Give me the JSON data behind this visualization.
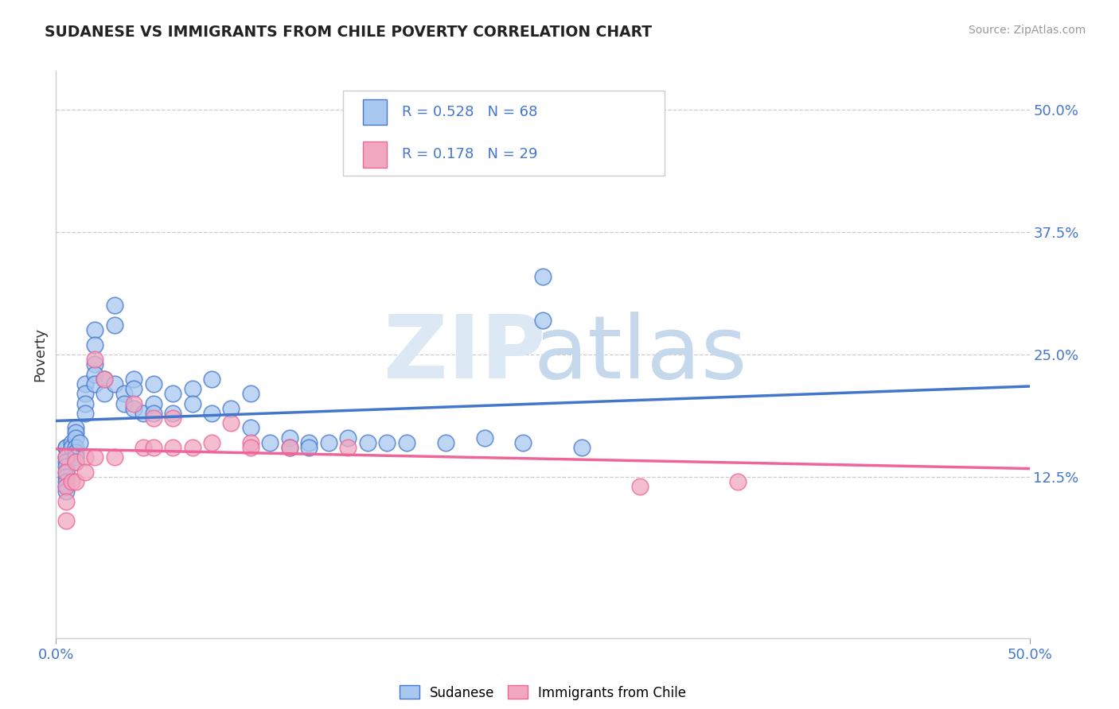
{
  "title": "SUDANESE VS IMMIGRANTS FROM CHILE POVERTY CORRELATION CHART",
  "source": "Source: ZipAtlas.com",
  "ylabel": "Poverty",
  "y_tick_values": [
    0.125,
    0.25,
    0.375,
    0.5
  ],
  "y_tick_labels": [
    "12.5%",
    "25.0%",
    "37.5%",
    "50.0%"
  ],
  "xlim": [
    0.0,
    0.5
  ],
  "ylim": [
    -0.04,
    0.54
  ],
  "R_sudanese": 0.528,
  "N_sudanese": 68,
  "R_chile": 0.178,
  "N_chile": 29,
  "color_sudanese": "#A8C8F0",
  "color_chile": "#F0A8C0",
  "line_color_sudanese": "#4477CC",
  "line_color_chile": "#EE6699",
  "tick_color": "#4477CC",
  "legend_label_sudanese": "Sudanese",
  "legend_label_chile": "Immigrants from Chile",
  "sudanese_x": [
    0.005,
    0.005,
    0.005,
    0.005,
    0.005,
    0.005,
    0.005,
    0.005,
    0.005,
    0.005,
    0.008,
    0.008,
    0.01,
    0.01,
    0.01,
    0.01,
    0.01,
    0.01,
    0.01,
    0.012,
    0.015,
    0.015,
    0.015,
    0.015,
    0.02,
    0.02,
    0.02,
    0.02,
    0.02,
    0.025,
    0.025,
    0.03,
    0.03,
    0.03,
    0.035,
    0.035,
    0.04,
    0.04,
    0.04,
    0.045,
    0.05,
    0.05,
    0.05,
    0.06,
    0.06,
    0.07,
    0.07,
    0.08,
    0.08,
    0.09,
    0.1,
    0.1,
    0.11,
    0.12,
    0.12,
    0.13,
    0.13,
    0.14,
    0.15,
    0.16,
    0.17,
    0.18,
    0.2,
    0.22,
    0.24,
    0.25,
    0.25,
    0.27
  ],
  "sudanese_y": [
    0.155,
    0.155,
    0.145,
    0.14,
    0.135,
    0.13,
    0.125,
    0.12,
    0.115,
    0.11,
    0.16,
    0.155,
    0.175,
    0.17,
    0.165,
    0.155,
    0.15,
    0.145,
    0.14,
    0.16,
    0.22,
    0.21,
    0.2,
    0.19,
    0.275,
    0.26,
    0.24,
    0.23,
    0.22,
    0.225,
    0.21,
    0.3,
    0.28,
    0.22,
    0.21,
    0.2,
    0.225,
    0.215,
    0.195,
    0.19,
    0.22,
    0.2,
    0.19,
    0.21,
    0.19,
    0.215,
    0.2,
    0.225,
    0.19,
    0.195,
    0.21,
    0.175,
    0.16,
    0.165,
    0.155,
    0.16,
    0.155,
    0.16,
    0.165,
    0.16,
    0.16,
    0.16,
    0.16,
    0.165,
    0.16,
    0.285,
    0.33,
    0.155
  ],
  "chile_x": [
    0.005,
    0.005,
    0.005,
    0.005,
    0.005,
    0.008,
    0.01,
    0.01,
    0.015,
    0.015,
    0.02,
    0.02,
    0.025,
    0.03,
    0.04,
    0.045,
    0.05,
    0.05,
    0.06,
    0.06,
    0.07,
    0.08,
    0.09,
    0.1,
    0.1,
    0.12,
    0.15,
    0.3,
    0.35
  ],
  "chile_y": [
    0.145,
    0.13,
    0.115,
    0.1,
    0.08,
    0.12,
    0.14,
    0.12,
    0.145,
    0.13,
    0.245,
    0.145,
    0.225,
    0.145,
    0.2,
    0.155,
    0.185,
    0.155,
    0.185,
    0.155,
    0.155,
    0.16,
    0.18,
    0.16,
    0.155,
    0.155,
    0.155,
    0.115,
    0.12
  ]
}
